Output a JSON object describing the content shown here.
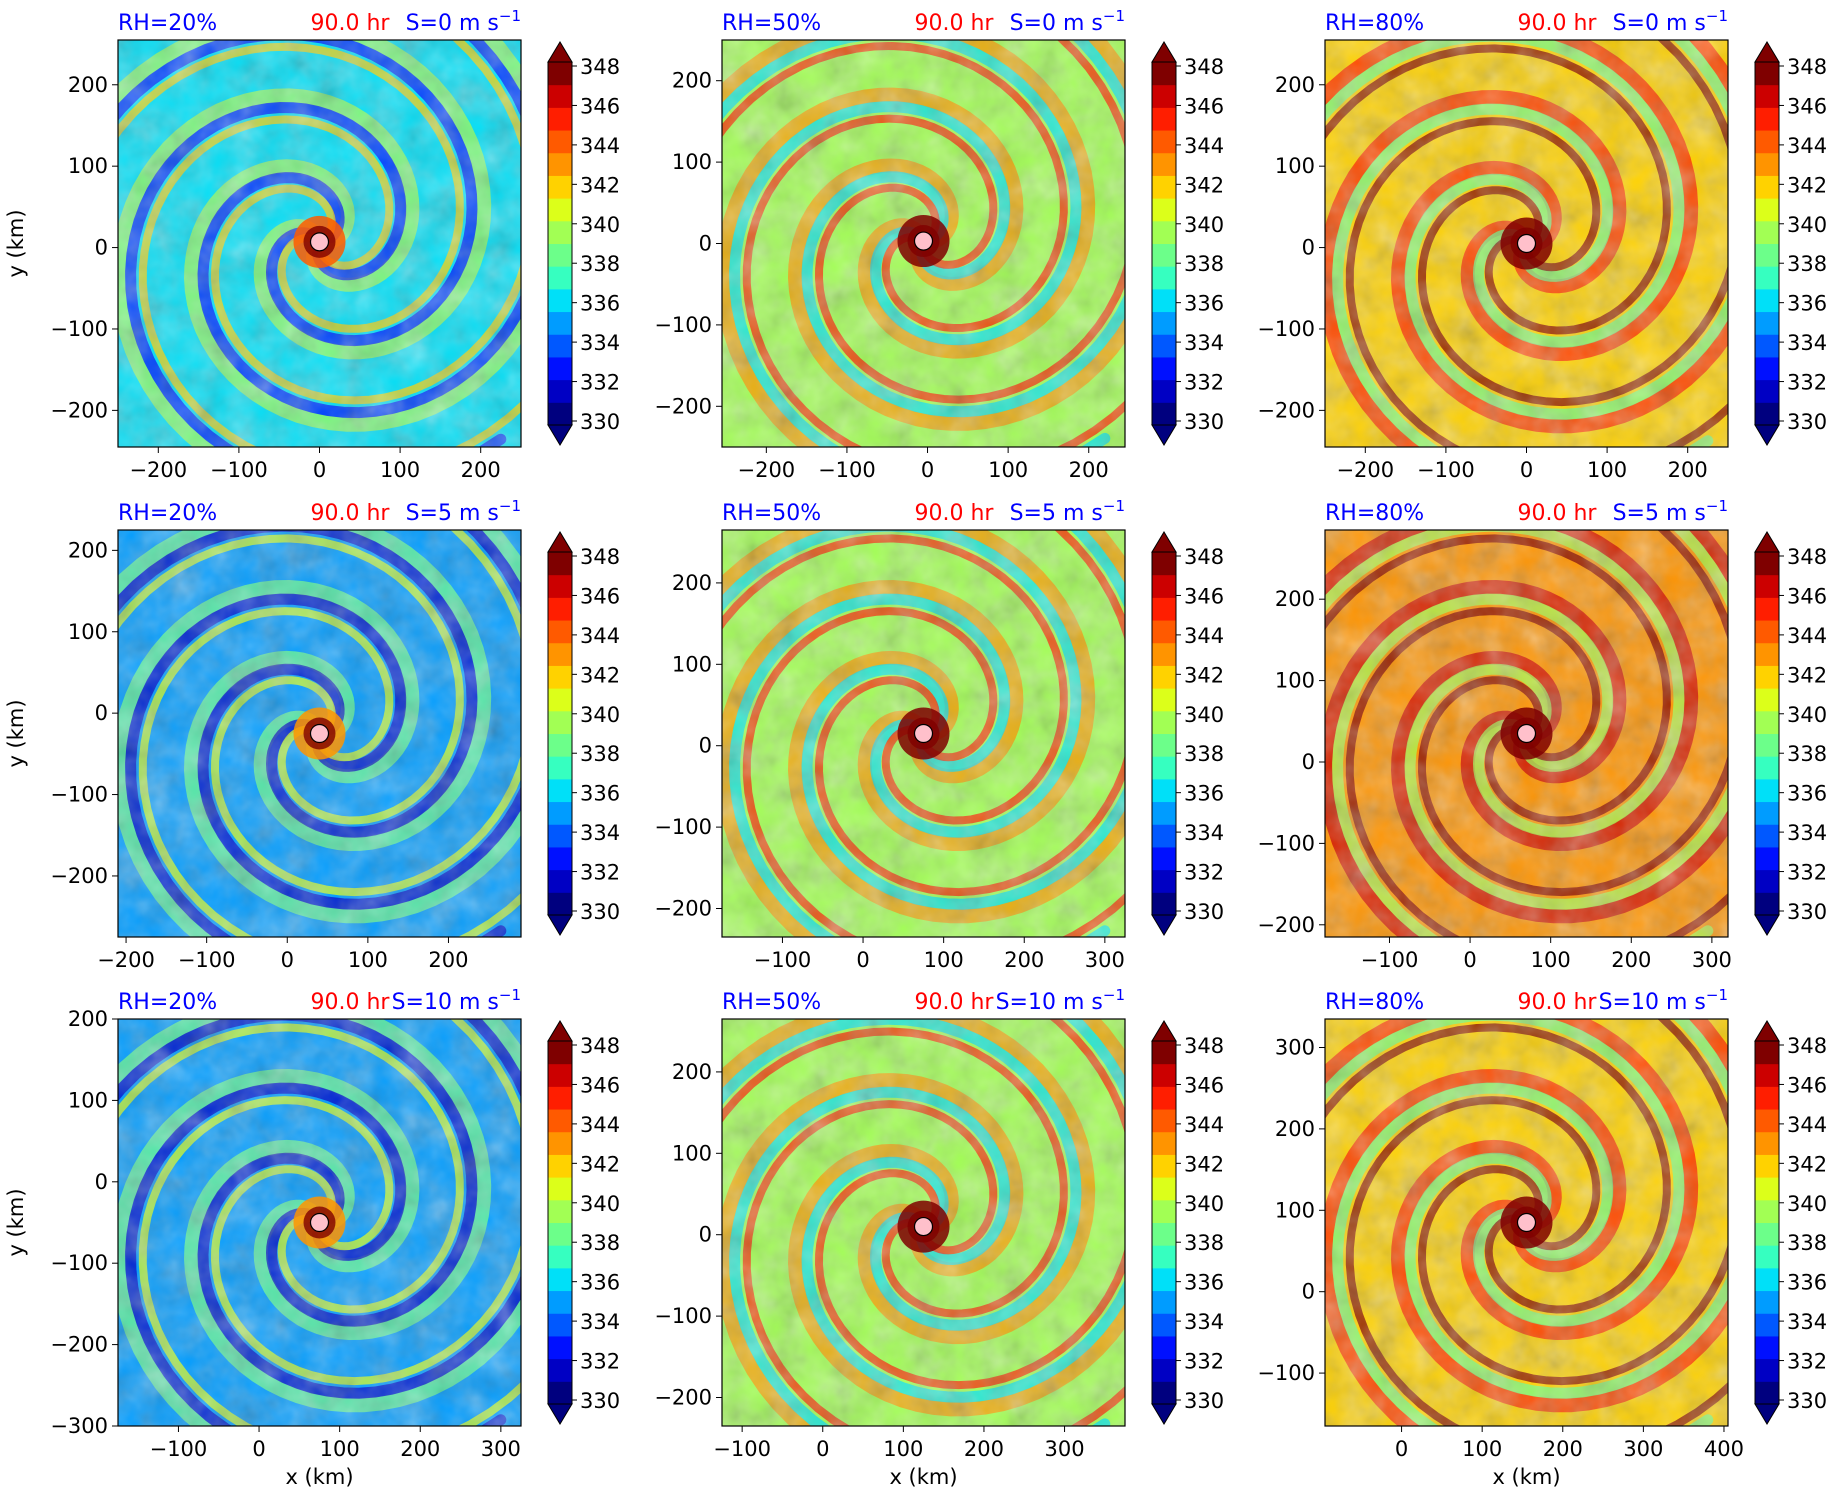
{
  "figure": {
    "colorbar_ticks": [
      "348",
      "346",
      "344",
      "342",
      "340",
      "338",
      "336",
      "334",
      "332",
      "330"
    ],
    "colormap": [
      "#00007f",
      "#0000c4",
      "#0010ff",
      "#0058ff",
      "#009cff",
      "#00e0f8",
      "#36ffc0",
      "#6cff8a",
      "#a2ff54",
      "#dcff1a",
      "#ffd200",
      "#ff9400",
      "#ff5a00",
      "#ff1e00",
      "#cc0000",
      "#7f0000"
    ],
    "center_marker_color": "#ffc0cb"
  },
  "chart_data": [
    {
      "type": "heatmap",
      "rh_label": "RH=20%",
      "time_label": "90.0 hr",
      "shear_label": "S=0 m s",
      "shear_exp": "−1",
      "ylabel": "y (km)",
      "xlabel": "",
      "xlim": [
        -250,
        250
      ],
      "ylim": [
        -245,
        255
      ],
      "xticks": [
        "−200",
        "−100",
        "0",
        "100",
        "200"
      ],
      "yticks": [
        "200",
        "100",
        "0",
        "−100",
        "−200"
      ],
      "center": [
        0,
        7
      ],
      "background": 0.3,
      "colorbar_range": [
        330,
        348
      ]
    },
    {
      "type": "heatmap",
      "rh_label": "RH=50%",
      "time_label": "90.0 hr",
      "shear_label": "S=0 m s",
      "shear_exp": "−1",
      "ylabel": "",
      "xlabel": "",
      "xlim": [
        -255,
        245
      ],
      "ylim": [
        -250,
        250
      ],
      "xticks": [
        "−200",
        "−100",
        "0",
        "100",
        "200"
      ],
      "yticks": [
        "200",
        "100",
        "0",
        "−100",
        "−200"
      ],
      "center": [
        -5,
        3
      ],
      "background": 0.52,
      "colorbar_range": [
        330,
        348
      ]
    },
    {
      "type": "heatmap",
      "rh_label": "RH=80%",
      "time_label": "90.0 hr",
      "shear_label": "S=0 m s",
      "shear_exp": "−1",
      "ylabel": "",
      "xlabel": "",
      "xlim": [
        -250,
        250
      ],
      "ylim": [
        -245,
        255
      ],
      "xticks": [
        "−200",
        "−100",
        "0",
        "100",
        "200"
      ],
      "yticks": [
        "200",
        "100",
        "0",
        "−100",
        "−200"
      ],
      "center": [
        0,
        5
      ],
      "background": 0.68,
      "colorbar_range": [
        330,
        348
      ]
    },
    {
      "type": "heatmap",
      "rh_label": "RH=20%",
      "time_label": "90.0 hr",
      "shear_label": "S=5 m s",
      "shear_exp": "−1",
      "ylabel": "y (km)",
      "xlabel": "",
      "xlim": [
        -210,
        290
      ],
      "ylim": [
        -275,
        225
      ],
      "xticks": [
        "−200",
        "−100",
        "0",
        "100",
        "200"
      ],
      "yticks": [
        "200",
        "100",
        "0",
        "−100",
        "−200"
      ],
      "center": [
        40,
        -25
      ],
      "background": 0.28,
      "colorbar_range": [
        330,
        348
      ]
    },
    {
      "type": "heatmap",
      "rh_label": "RH=50%",
      "time_label": "90.0 hr",
      "shear_label": "S=5 m s",
      "shear_exp": "−1",
      "ylabel": "",
      "xlabel": "",
      "xlim": [
        -175,
        325
      ],
      "ylim": [
        -235,
        265
      ],
      "xticks": [
        "−100",
        "0",
        "100",
        "200",
        "300"
      ],
      "yticks": [
        "200",
        "100",
        "0",
        "−100",
        "−200"
      ],
      "center": [
        75,
        15
      ],
      "background": 0.5,
      "colorbar_range": [
        330,
        348
      ]
    },
    {
      "type": "heatmap",
      "rh_label": "RH=80%",
      "time_label": "90.0 hr",
      "shear_label": "S=5 m s",
      "shear_exp": "−1",
      "ylabel": "",
      "xlabel": "",
      "xlim": [
        -180,
        320
      ],
      "ylim": [
        -215,
        285
      ],
      "xticks": [
        "−100",
        "0",
        "100",
        "200",
        "300"
      ],
      "yticks": [
        "200",
        "100",
        "0",
        "−100",
        "−200"
      ],
      "center": [
        70,
        35
      ],
      "background": 0.72,
      "colorbar_range": [
        330,
        348
      ]
    },
    {
      "type": "heatmap",
      "rh_label": "RH=20%",
      "time_label": "90.0 hr",
      "shear_label": "S=10 m s",
      "shear_exp": "−1",
      "ylabel": "y (km)",
      "xlabel": "x (km)",
      "xlim": [
        -175,
        325
      ],
      "ylim": [
        -300,
        200
      ],
      "xticks": [
        "−100",
        "0",
        "100",
        "200",
        "300"
      ],
      "yticks": [
        "200",
        "100",
        "0",
        "−100",
        "−200",
        "−300"
      ],
      "center": [
        75,
        -50
      ],
      "background": 0.25,
      "colorbar_range": [
        330,
        348
      ]
    },
    {
      "type": "heatmap",
      "rh_label": "RH=50%",
      "time_label": "90.0 hr",
      "shear_label": "S=10 m s",
      "shear_exp": "−1",
      "ylabel": "",
      "xlabel": "x (km)",
      "xlim": [
        -125,
        375
      ],
      "ylim": [
        -235,
        265
      ],
      "xticks": [
        "−100",
        "0",
        "100",
        "200",
        "300"
      ],
      "yticks": [
        "200",
        "100",
        "0",
        "−100",
        "−200"
      ],
      "center": [
        125,
        10
      ],
      "background": 0.5,
      "colorbar_range": [
        330,
        348
      ]
    },
    {
      "type": "heatmap",
      "rh_label": "RH=80%",
      "time_label": "90.0 hr",
      "shear_label": "S=10 m s",
      "shear_exp": "−1",
      "ylabel": "",
      "xlabel": "x (km)",
      "xlim": [
        -95,
        405
      ],
      "ylim": [
        -165,
        335
      ],
      "xticks": [
        "0",
        "100",
        "200",
        "300",
        "400"
      ],
      "yticks": [
        "300",
        "200",
        "100",
        "0",
        "−100"
      ],
      "center": [
        155,
        85
      ],
      "background": 0.68,
      "colorbar_range": [
        330,
        348
      ]
    }
  ]
}
